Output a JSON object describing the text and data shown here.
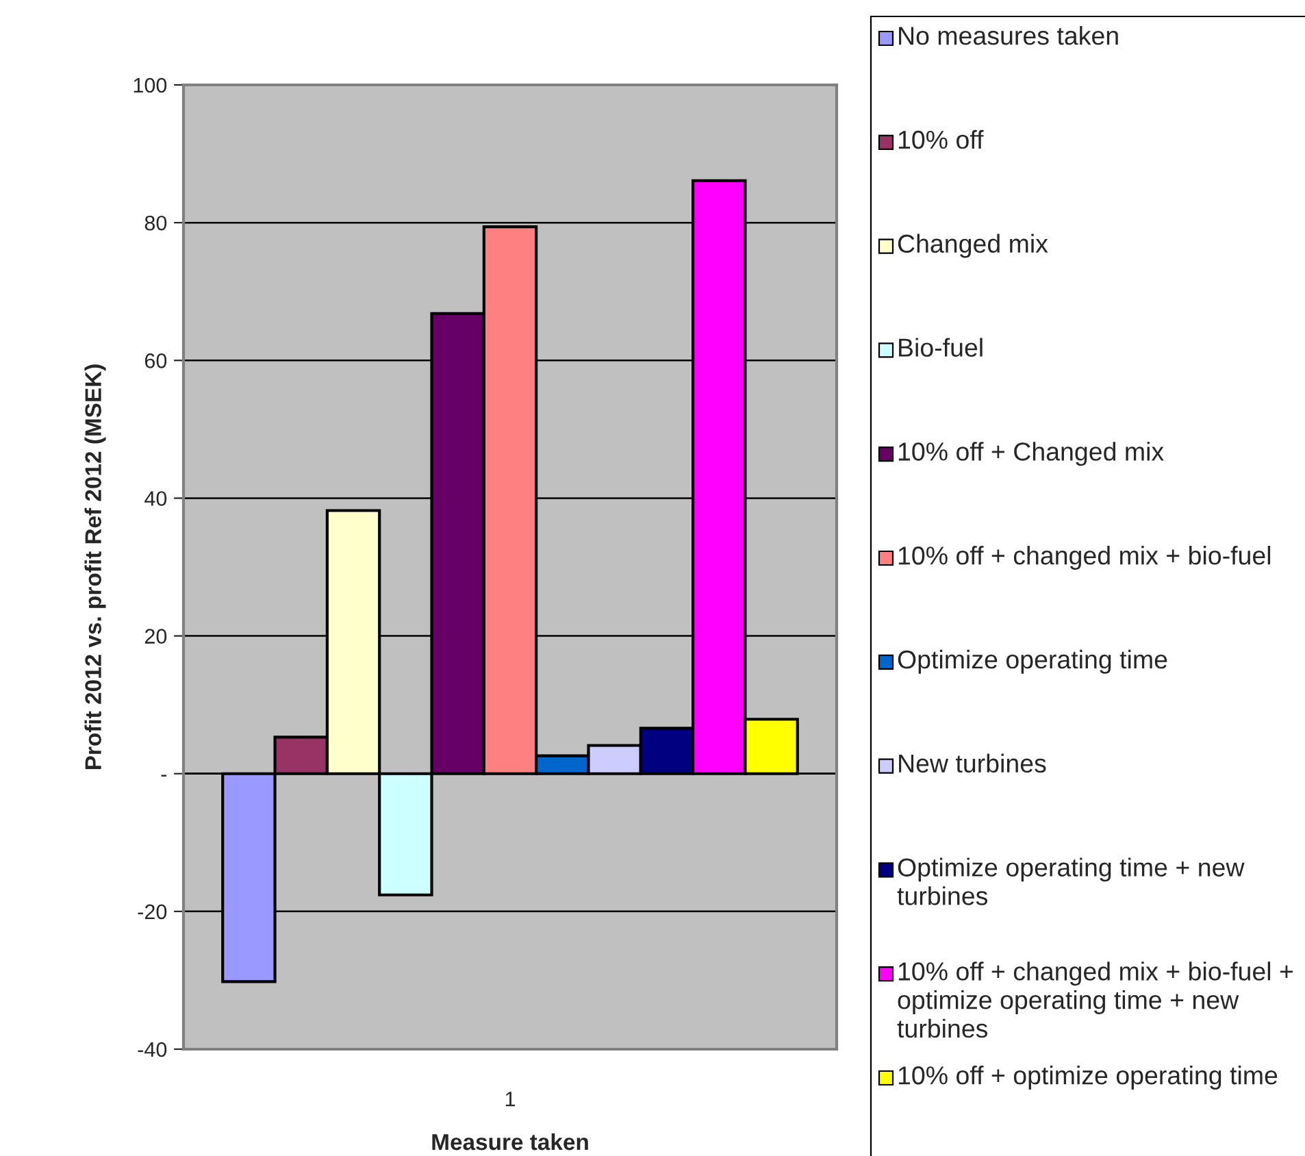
{
  "chart_data": {
    "type": "bar",
    "xlabel": "Measure taken",
    "ylabel": "Profit 2012 vs. profit Ref 2012 (MSEK)",
    "categories": [
      "1"
    ],
    "series": [
      {
        "name": "No measures taken",
        "color": "#9999ff",
        "values": [
          -30.2
        ]
      },
      {
        "name": "10% off",
        "color": "#993366",
        "values": [
          5.3
        ]
      },
      {
        "name": "Changed mix",
        "color": "#ffffcc",
        "values": [
          38.2
        ]
      },
      {
        "name": "Bio-fuel",
        "color": "#ccffff",
        "values": [
          -17.6
        ]
      },
      {
        "name": "10% off + Changed mix",
        "color": "#660066",
        "values": [
          66.8
        ]
      },
      {
        "name": "10% off + changed mix + bio-fuel",
        "color": "#ff8080",
        "values": [
          79.4
        ]
      },
      {
        "name": "Optimize operating time",
        "color": "#0066cc",
        "values": [
          2.6
        ]
      },
      {
        "name": "New turbines",
        "color": "#ccccff",
        "values": [
          4.1
        ]
      },
      {
        "name": "Optimize operating time + new turbines",
        "color": "#000080",
        "values": [
          6.6
        ]
      },
      {
        "name": "10% off + changed mix + bio-fuel + optimize operating time + new turbines",
        "color": "#ff00ff",
        "values": [
          86.1
        ]
      },
      {
        "name": "10% off + optimize operating time",
        "color": "#ffff00",
        "values": [
          7.9
        ]
      }
    ],
    "ylim": [
      -40,
      100
    ],
    "yticks": [
      -40,
      -20,
      {
        "value": 0,
        "label": "-"
      },
      20,
      40,
      60,
      80,
      100
    ],
    "grid": "y",
    "legend": "right"
  }
}
